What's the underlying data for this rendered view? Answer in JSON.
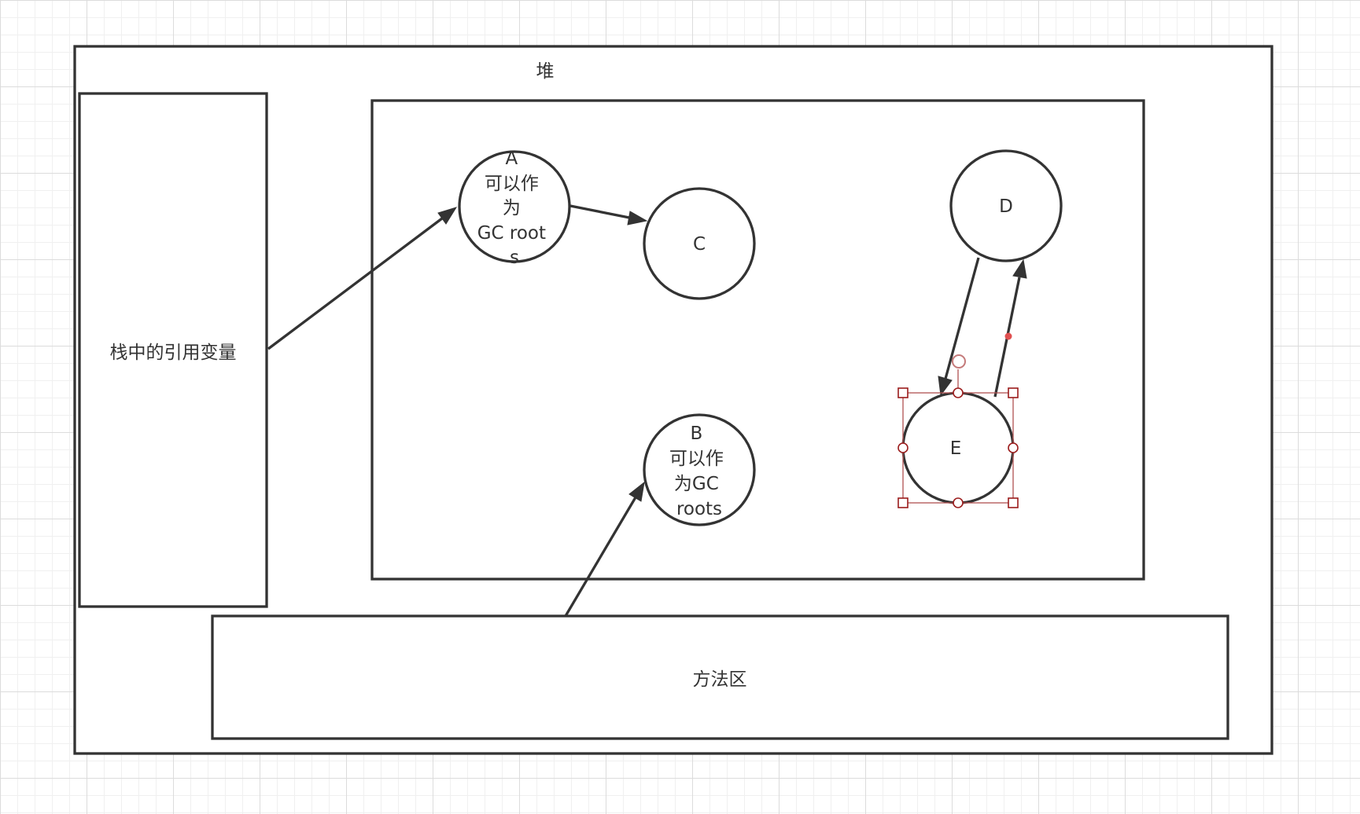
{
  "labels": {
    "heap": "堆",
    "stack_refs": "栈中的引用变量",
    "method_area": "方法区"
  },
  "nodes": {
    "A": {
      "lines": [
        "A",
        "可以作",
        "为",
        "GC root",
        "s"
      ]
    },
    "B": {
      "lines": [
        "B",
        "可以作",
        "为GC",
        "roots"
      ]
    },
    "C": {
      "lines": [
        "C"
      ]
    },
    "D": {
      "lines": [
        "D"
      ]
    },
    "E": {
      "lines": [
        "E"
      ]
    }
  },
  "edges": [
    {
      "from": "stack_refs",
      "to": "A"
    },
    {
      "from": "A",
      "to": "C"
    },
    {
      "from": "method_area",
      "to": "B"
    },
    {
      "from": "D",
      "to": "E"
    },
    {
      "from": "E",
      "to": "D"
    }
  ],
  "selection": {
    "selected_node": "E"
  },
  "colors": {
    "stroke": "#333333",
    "grid_major": "#dcdcdc",
    "grid_minor": "#f0f0f0",
    "selection": "#9b1c1c"
  }
}
